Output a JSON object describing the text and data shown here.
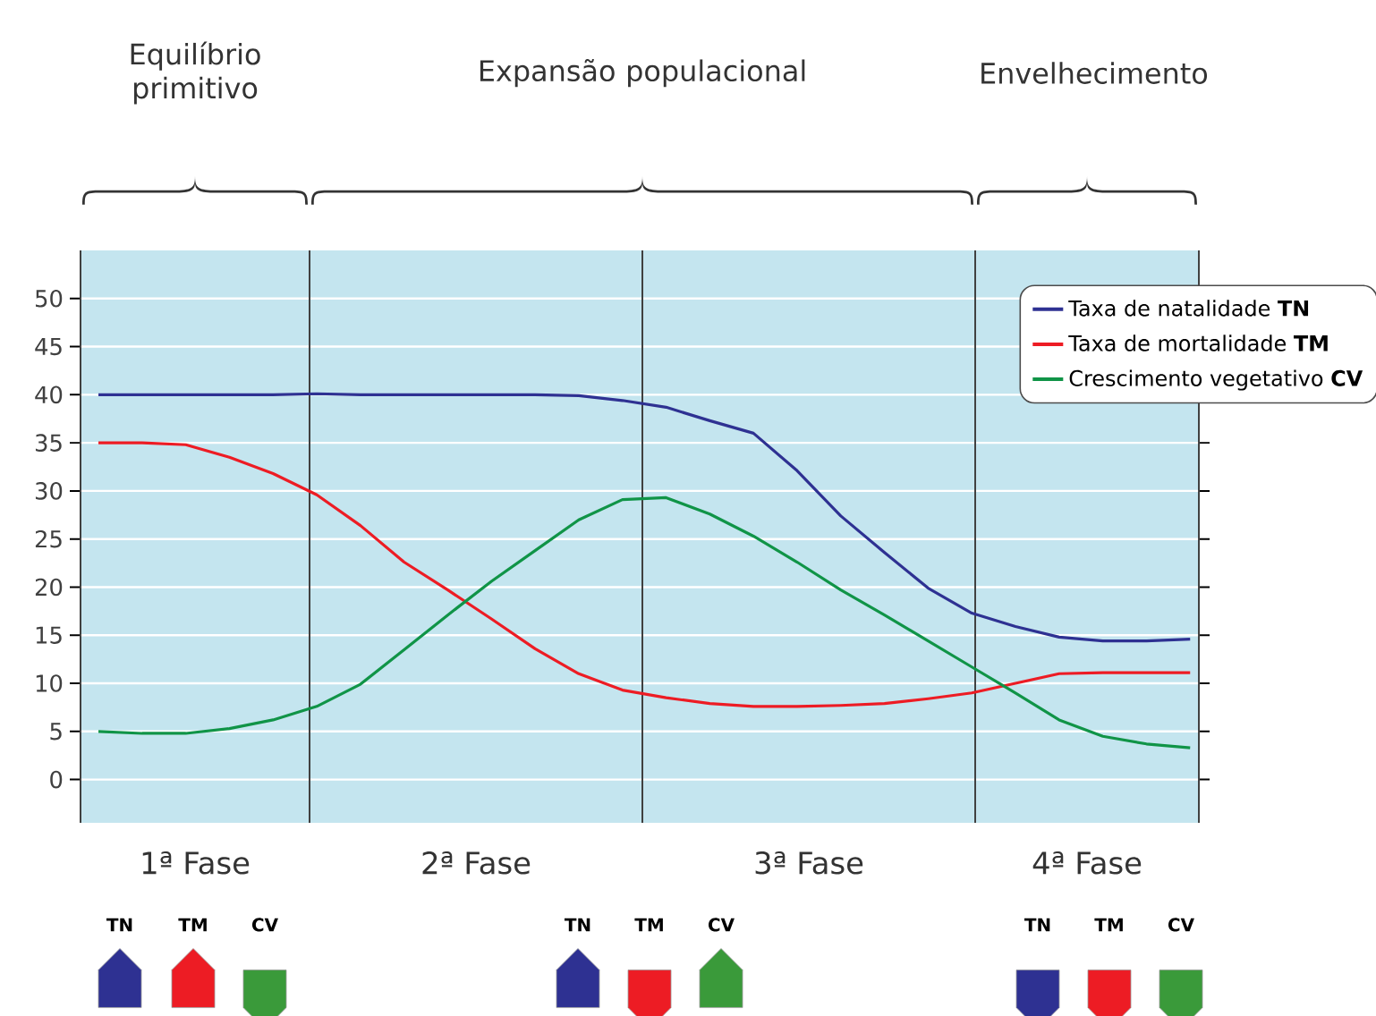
{
  "chart_data": {
    "type": "line",
    "categories": [
      null,
      null,
      null,
      null,
      null,
      null,
      null,
      null,
      null,
      null,
      null,
      null,
      null,
      null,
      null,
      null,
      null,
      null,
      null,
      null,
      null,
      null,
      null,
      null,
      null,
      null
    ],
    "ylim": [
      -4.5,
      55
    ],
    "yticks": [
      0,
      5,
      10,
      15,
      20,
      25,
      30,
      35,
      40,
      45,
      50
    ],
    "tick_labels": "y",
    "grid": "y",
    "legend": "top right",
    "series": [
      {
        "name": "Taxa de natalidade **TN**",
        "color": "#2e3192",
        "values": [
          40,
          40,
          40,
          40,
          40,
          40.1,
          40,
          40,
          40,
          40,
          40,
          39.9,
          39.4,
          38.7,
          37.3,
          36,
          32.1,
          27.4,
          23.6,
          19.9,
          17.3,
          15.9,
          14.8,
          14.4,
          14.4,
          14.6
        ]
      },
      {
        "name": "Taxa de mortalidade **TM**",
        "color": "#ed1c24",
        "values": [
          35,
          35,
          34.8,
          33.5,
          31.8,
          29.6,
          26.4,
          22.6,
          19.7,
          16.7,
          13.6,
          11,
          9.3,
          8.5,
          7.9,
          7.6,
          7.6,
          7.7,
          7.9,
          8.4,
          9,
          10,
          11,
          11.1,
          11.1,
          11.1
        ]
      },
      {
        "name": "Crescimento vegetativo **CV**",
        "color": "#109447",
        "values": [
          5,
          4.8,
          4.8,
          5.3,
          6.2,
          7.6,
          9.9,
          13.5,
          17.1,
          20.6,
          23.8,
          27,
          29.1,
          29.3,
          27.6,
          25.3,
          22.6,
          19.7,
          17.1,
          14.4,
          11.7,
          9,
          6.2,
          4.5,
          3.7,
          3.3
        ]
      }
    ],
    "annotations": [
      "Equilíbrio primitivo",
      "Expansão populacional",
      "Envelhecimento",
      "1ª Fase",
      "2ª Fase",
      "3ª Fase",
      "4ª Fase",
      "TN",
      "TM",
      "CV",
      "TN",
      "TM",
      "CV",
      "TN",
      "TM",
      "CV"
    ]
  }
}
